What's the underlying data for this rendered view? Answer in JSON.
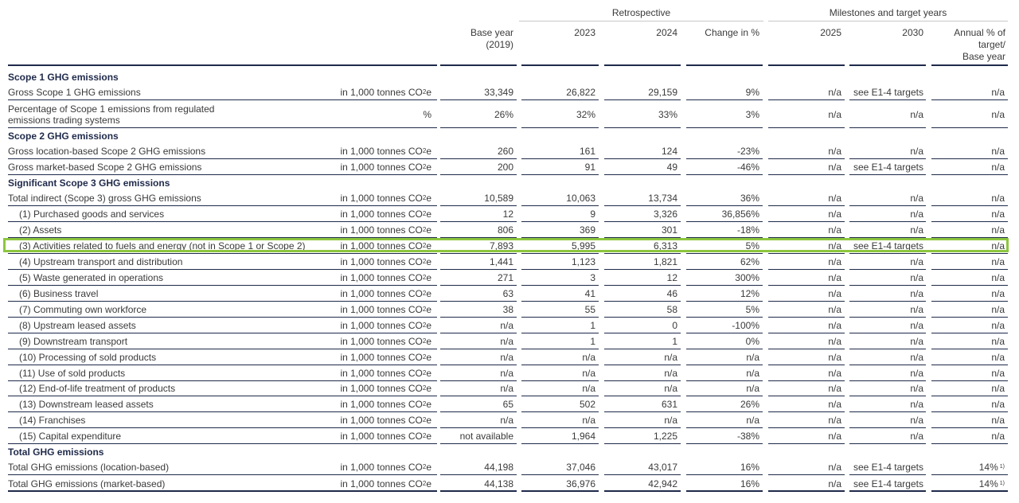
{
  "header": {
    "group_retrospective": "Retrospective",
    "group_milestones": "Milestones and target years",
    "columns": [
      "Base year\n(2019)",
      "2023",
      "2024",
      "Change in %",
      "2025",
      "2030",
      "Annual % of\ntarget/\nBase year"
    ]
  },
  "unit_tonnes": "in 1,000 tonnes CO",
  "unit_tonnes_sub": "2",
  "unit_tonnes_tail": "e",
  "sections": {
    "scope1": "Scope 1 GHG emissions",
    "scope2": "Scope 2 GHG emissions",
    "scope3": "Significant Scope 3 GHG emissions",
    "total": "Total GHG emissions"
  },
  "rows": {
    "s1_gross": {
      "label": "Gross Scope 1 GHG emissions",
      "values": [
        "33,349",
        "26,822",
        "29,159",
        "9%",
        "n/a",
        "see E1-4 targets",
        "n/a"
      ]
    },
    "s1_pct": {
      "label": "Percentage of Scope 1 emissions from regulated\nemissions trading systems",
      "unit": "%",
      "values": [
        "26%",
        "32%",
        "33%",
        "3%",
        "n/a",
        "n/a",
        "n/a"
      ]
    },
    "s2_loc": {
      "label": "Gross location-based Scope 2 GHG emissions",
      "values": [
        "260",
        "161",
        "124",
        "-23%",
        "n/a",
        "n/a",
        "n/a"
      ]
    },
    "s2_mkt": {
      "label": "Gross market-based Scope 2 GHG emissions",
      "values": [
        "200",
        "91",
        "49",
        "-46%",
        "n/a",
        "see E1-4 targets",
        "n/a"
      ]
    },
    "s3_total": {
      "label": "Total indirect (Scope 3) gross GHG emissions",
      "values": [
        "10,589",
        "10,063",
        "13,734",
        "36%",
        "n/a",
        "n/a",
        "n/a"
      ]
    },
    "c1": {
      "label": "(1) Purchased goods and services",
      "values": [
        "12",
        "9",
        "3,326",
        "36,856%",
        "n/a",
        "n/a",
        "n/a"
      ]
    },
    "c2": {
      "label": "(2) Assets",
      "values": [
        "806",
        "369",
        "301",
        "-18%",
        "n/a",
        "n/a",
        "n/a"
      ]
    },
    "c3": {
      "label": "(3) Activities related to fuels and energy (not in Scope 1 or Scope 2)",
      "values": [
        "7,893",
        "5,995",
        "6,313",
        "5%",
        "n/a",
        "see E1-4 targets",
        "n/a"
      ]
    },
    "c4": {
      "label": "(4) Upstream transport and distribution",
      "values": [
        "1,441",
        "1,123",
        "1,821",
        "62%",
        "n/a",
        "n/a",
        "n/a"
      ]
    },
    "c5": {
      "label": "(5) Waste generated in operations",
      "values": [
        "271",
        "3",
        "12",
        "300%",
        "n/a",
        "n/a",
        "n/a"
      ]
    },
    "c6": {
      "label": "(6) Business travel",
      "values": [
        "63",
        "41",
        "46",
        "12%",
        "n/a",
        "n/a",
        "n/a"
      ]
    },
    "c7": {
      "label": "(7) Commuting own workforce",
      "values": [
        "38",
        "55",
        "58",
        "5%",
        "n/a",
        "n/a",
        "n/a"
      ]
    },
    "c8": {
      "label": "(8) Upstream leased assets",
      "values": [
        "n/a",
        "1",
        "0",
        "-100%",
        "n/a",
        "n/a",
        "n/a"
      ]
    },
    "c9": {
      "label": "(9) Downstream transport",
      "values": [
        "n/a",
        "1",
        "1",
        "0%",
        "n/a",
        "n/a",
        "n/a"
      ]
    },
    "c10": {
      "label": "(10) Processing of sold products",
      "values": [
        "n/a",
        "n/a",
        "n/a",
        "n/a",
        "n/a",
        "n/a",
        "n/a"
      ]
    },
    "c11": {
      "label": "(11) Use of sold products",
      "values": [
        "n/a",
        "n/a",
        "n/a",
        "n/a",
        "n/a",
        "n/a",
        "n/a"
      ]
    },
    "c12": {
      "label": "(12) End-of-life treatment of products",
      "values": [
        "n/a",
        "n/a",
        "n/a",
        "n/a",
        "n/a",
        "n/a",
        "n/a"
      ]
    },
    "c13": {
      "label": "(13) Downstream leased assets",
      "values": [
        "65",
        "502",
        "631",
        "26%",
        "n/a",
        "n/a",
        "n/a"
      ]
    },
    "c14": {
      "label": "(14) Franchises",
      "values": [
        "n/a",
        "n/a",
        "n/a",
        "n/a",
        "n/a",
        "n/a",
        "n/a"
      ]
    },
    "c15": {
      "label": "(15) Capital expenditure",
      "values": [
        "not available",
        "1,964",
        "1,225",
        "-38%",
        "n/a",
        "n/a",
        "n/a"
      ]
    },
    "tot_loc": {
      "label": "Total GHG emissions (location-based)",
      "values": [
        "44,198",
        "37,046",
        "43,017",
        "16%",
        "n/a",
        "see E1-4 targets",
        "14%"
      ],
      "footnote": "1)"
    },
    "tot_mkt": {
      "label": "Total GHG emissions (market-based)",
      "values": [
        "44,138",
        "36,976",
        "42,942",
        "16%",
        "n/a",
        "see E1-4 targets",
        "14%"
      ],
      "footnote": "1)"
    }
  },
  "highlight_color": "#8dc63f",
  "rule_color": "#1f2a4a"
}
